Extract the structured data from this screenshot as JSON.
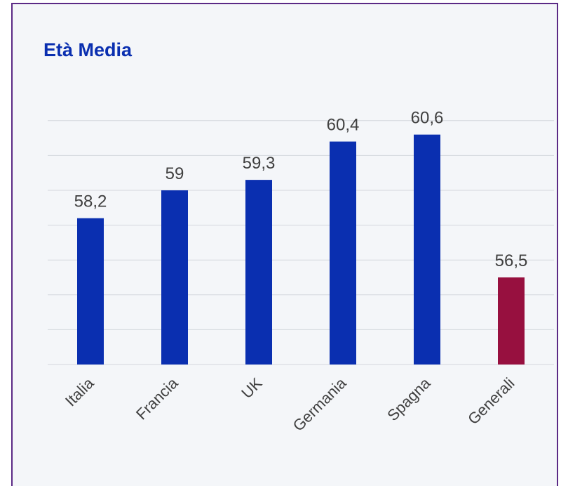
{
  "chart_data": {
    "type": "bar",
    "title": "Età Media",
    "xlabel": "",
    "ylabel": "",
    "categories": [
      "Italia",
      "Francia",
      "UK",
      "Germania",
      "Spagna",
      "Generali"
    ],
    "values": [
      58.2,
      59,
      59.3,
      60.4,
      60.6,
      56.5
    ],
    "value_labels": [
      "58,2",
      "59",
      "59,3",
      "60,4",
      "60,6",
      "56,5"
    ],
    "ylim": [
      54,
      61
    ],
    "grid": true,
    "legend": "none",
    "colors": {
      "default_bar": "#0a2fb0",
      "highlight_bar": "#97103f",
      "highlight_category": "Generali"
    }
  }
}
